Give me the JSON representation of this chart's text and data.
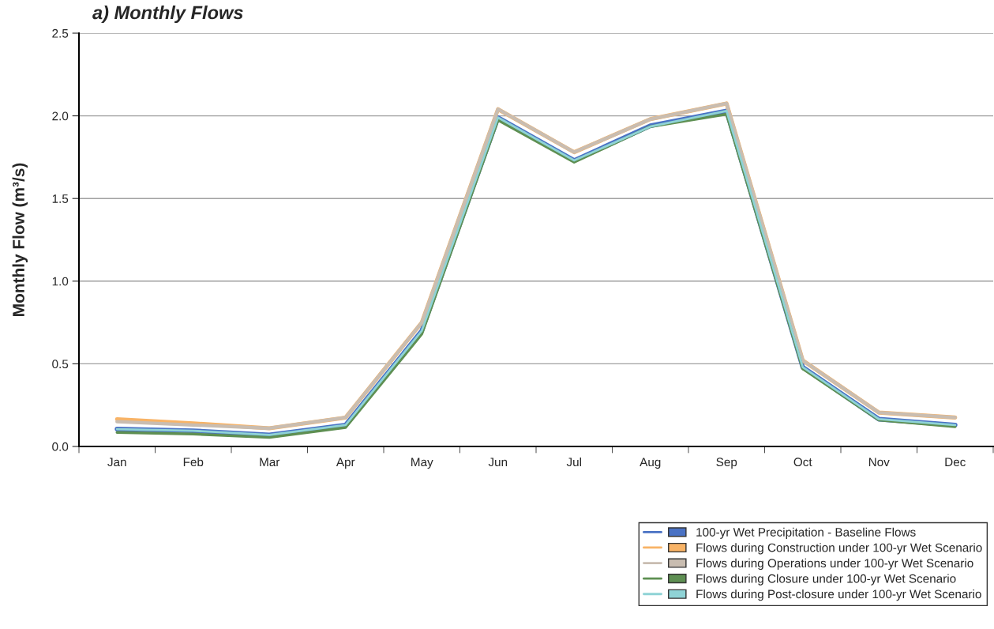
{
  "chart_data": {
    "type": "line",
    "title": "a) Monthly Flows",
    "ylabel": "Monthly Flow (m³/s)",
    "categories": [
      "Jan",
      "Feb",
      "Mar",
      "Apr",
      "May",
      "Jun",
      "Jul",
      "Aug",
      "Sep",
      "Oct",
      "Nov",
      "Dec"
    ],
    "series": [
      {
        "name": "100-yr Wet Precipitation - Baseline Flows",
        "color": "#4a72c4",
        "values": [
          0.105,
          0.095,
          0.07,
          0.13,
          0.7,
          1.99,
          1.73,
          1.94,
          2.03,
          0.48,
          0.165,
          0.13
        ]
      },
      {
        "name": "Flows during Construction under 100-yr Wet Scenario",
        "color": "#f8b366",
        "values": [
          0.165,
          0.14,
          0.11,
          0.175,
          0.75,
          2.04,
          1.78,
          1.98,
          2.075,
          0.52,
          0.205,
          0.175
        ]
      },
      {
        "name": "Flows during Operations under 100-yr Wet Scenario",
        "color": "#c9bdb1",
        "values": [
          0.15,
          0.13,
          0.11,
          0.175,
          0.75,
          2.04,
          1.78,
          1.98,
          2.075,
          0.52,
          0.205,
          0.175
        ]
      },
      {
        "name": "Flows during Closure under 100-yr Wet Scenario",
        "color": "#5e8f52",
        "values": [
          0.085,
          0.075,
          0.055,
          0.115,
          0.68,
          1.975,
          1.72,
          1.935,
          2.01,
          0.47,
          0.16,
          0.12
        ]
      },
      {
        "name": "Flows during Post-closure under 100-yr Wet Scenario",
        "color": "#8fd3d6",
        "values": [
          0.105,
          0.095,
          0.07,
          0.13,
          0.7,
          1.99,
          1.73,
          1.935,
          2.03,
          0.48,
          0.165,
          0.13
        ]
      }
    ],
    "ylim": [
      0,
      2.5
    ],
    "yticks": [
      {
        "value": 0,
        "label": "0.0"
      },
      {
        "value": 0.5,
        "label": "0.5"
      },
      {
        "value": 1,
        "label": "1.0"
      },
      {
        "value": 1.5,
        "label": "1.5"
      },
      {
        "value": 2,
        "label": "2.0"
      },
      {
        "value": 2.5,
        "label": "2.5"
      }
    ],
    "grid": "y",
    "legend": "bottom right",
    "marker": "none",
    "line_style": "solid"
  }
}
